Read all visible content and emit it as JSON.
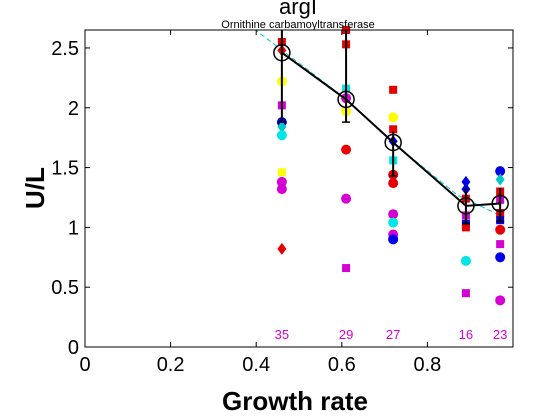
{
  "chart_data": {
    "type": "scatter",
    "title": "argI",
    "subtitle": "Ornithine carbamoyltransferase",
    "xlabel": "Growth rate",
    "ylabel": "U/L",
    "xlim": [
      0,
      1.0
    ],
    "ylim": [
      0,
      2.65
    ],
    "xticks": [
      {
        "value": 0,
        "label": "0"
      },
      {
        "value": 0.2,
        "label": "0.2"
      },
      {
        "value": 0.4,
        "label": "0.4"
      },
      {
        "value": 0.6,
        "label": "0.6"
      },
      {
        "value": 0.8,
        "label": "0.8"
      }
    ],
    "yticks": [
      {
        "value": 0,
        "label": "0"
      },
      {
        "value": 0.5,
        "label": "0.5"
      },
      {
        "value": 1,
        "label": "1"
      },
      {
        "value": 1.5,
        "label": "1.5"
      },
      {
        "value": 2,
        "label": "2"
      },
      {
        "value": 2.5,
        "label": "2.5"
      }
    ],
    "grid": false,
    "mean_series": {
      "color": "#000000",
      "points": [
        {
          "x": 0.46,
          "y": 2.46,
          "low": 1.88,
          "high": 2.65
        },
        {
          "x": 0.61,
          "y": 2.07,
          "low": 1.88,
          "high": 2.65
        },
        {
          "x": 0.72,
          "y": 1.71,
          "low": 1.43,
          "high": 1.8
        },
        {
          "x": 0.89,
          "y": 1.18,
          "low": 1.03,
          "high": 1.33
        },
        {
          "x": 0.97,
          "y": 1.2,
          "low": 1.05,
          "high": 1.33
        }
      ]
    },
    "fit_line": {
      "color": "#00c8c8",
      "points": [
        [
          0.38,
          2.7
        ],
        [
          0.6,
          2.1
        ],
        [
          0.75,
          1.62
        ],
        [
          0.87,
          1.27
        ],
        [
          0.97,
          1.1
        ]
      ]
    },
    "points": [
      {
        "x": 0.46,
        "y": 2.55,
        "shape": "square",
        "color": "#e60000"
      },
      {
        "x": 0.46,
        "y": 2.48,
        "shape": "diamond",
        "color": "#e60000"
      },
      {
        "x": 0.46,
        "y": 2.22,
        "shape": "circle",
        "color": "#ffff00"
      },
      {
        "x": 0.46,
        "y": 2.02,
        "shape": "square",
        "color": "#d400d4"
      },
      {
        "x": 0.46,
        "y": 1.88,
        "shape": "circle",
        "color": "#0000e6"
      },
      {
        "x": 0.46,
        "y": 1.84,
        "shape": "diamond",
        "color": "#00c8c8"
      },
      {
        "x": 0.46,
        "y": 1.77,
        "shape": "circle",
        "color": "#00e6e6"
      },
      {
        "x": 0.46,
        "y": 1.46,
        "shape": "square",
        "color": "#ffff00"
      },
      {
        "x": 0.46,
        "y": 1.38,
        "shape": "circle",
        "color": "#d400d4"
      },
      {
        "x": 0.46,
        "y": 1.32,
        "shape": "circle",
        "color": "#d400d4"
      },
      {
        "x": 0.46,
        "y": 0.82,
        "shape": "diamond",
        "color": "#e60000"
      },
      {
        "x": 0.61,
        "y": 2.65,
        "shape": "square",
        "color": "#e60000"
      },
      {
        "x": 0.61,
        "y": 2.53,
        "shape": "square",
        "color": "#e60000"
      },
      {
        "x": 0.61,
        "y": 2.16,
        "shape": "square",
        "color": "#00e6e6"
      },
      {
        "x": 0.61,
        "y": 2.08,
        "shape": "circle",
        "color": "#d400d4"
      },
      {
        "x": 0.61,
        "y": 1.97,
        "shape": "circle",
        "color": "#ffff00"
      },
      {
        "x": 0.61,
        "y": 1.65,
        "shape": "circle",
        "color": "#e60000"
      },
      {
        "x": 0.61,
        "y": 1.24,
        "shape": "circle",
        "color": "#d400d4"
      },
      {
        "x": 0.61,
        "y": 0.66,
        "shape": "square",
        "color": "#d400d4"
      },
      {
        "x": 0.72,
        "y": 2.15,
        "shape": "square",
        "color": "#e60000"
      },
      {
        "x": 0.72,
        "y": 1.92,
        "shape": "circle",
        "color": "#ffff00"
      },
      {
        "x": 0.72,
        "y": 1.82,
        "shape": "square",
        "color": "#e60000"
      },
      {
        "x": 0.72,
        "y": 1.72,
        "shape": "diamond",
        "color": "#0000e6"
      },
      {
        "x": 0.72,
        "y": 1.56,
        "shape": "square",
        "color": "#00e6e6"
      },
      {
        "x": 0.72,
        "y": 1.44,
        "shape": "circle",
        "color": "#e60000"
      },
      {
        "x": 0.72,
        "y": 1.37,
        "shape": "circle",
        "color": "#e60000"
      },
      {
        "x": 0.72,
        "y": 1.11,
        "shape": "circle",
        "color": "#d400d4"
      },
      {
        "x": 0.72,
        "y": 1.04,
        "shape": "circle",
        "color": "#00e6e6"
      },
      {
        "x": 0.72,
        "y": 0.94,
        "shape": "circle",
        "color": "#d400d4"
      },
      {
        "x": 0.72,
        "y": 0.9,
        "shape": "circle",
        "color": "#0000e6"
      },
      {
        "x": 0.89,
        "y": 1.38,
        "shape": "diamond",
        "color": "#0000e6"
      },
      {
        "x": 0.89,
        "y": 1.32,
        "shape": "diamond",
        "color": "#0000e6"
      },
      {
        "x": 0.89,
        "y": 1.24,
        "shape": "square",
        "color": "#e60000"
      },
      {
        "x": 0.89,
        "y": 1.1,
        "shape": "square",
        "color": "#d400d4"
      },
      {
        "x": 0.89,
        "y": 1.03,
        "shape": "square",
        "color": "#0000e6"
      },
      {
        "x": 0.89,
        "y": 1.0,
        "shape": "square",
        "color": "#e60000"
      },
      {
        "x": 0.89,
        "y": 0.72,
        "shape": "circle",
        "color": "#00e6e6"
      },
      {
        "x": 0.89,
        "y": 0.45,
        "shape": "square",
        "color": "#d400d4"
      },
      {
        "x": 0.97,
        "y": 1.47,
        "shape": "circle",
        "color": "#0000e6"
      },
      {
        "x": 0.97,
        "y": 1.4,
        "shape": "diamond",
        "color": "#00c8c8"
      },
      {
        "x": 0.97,
        "y": 1.3,
        "shape": "square",
        "color": "#e60000"
      },
      {
        "x": 0.97,
        "y": 1.23,
        "shape": "square",
        "color": "#d400d4"
      },
      {
        "x": 0.97,
        "y": 1.12,
        "shape": "square",
        "color": "#e60000"
      },
      {
        "x": 0.97,
        "y": 1.06,
        "shape": "square",
        "color": "#0000e6"
      },
      {
        "x": 0.97,
        "y": 0.98,
        "shape": "circle",
        "color": "#e60000"
      },
      {
        "x": 0.97,
        "y": 0.86,
        "shape": "square",
        "color": "#d400d4"
      },
      {
        "x": 0.97,
        "y": 0.75,
        "shape": "circle",
        "color": "#0000e6"
      },
      {
        "x": 0.97,
        "y": 0.39,
        "shape": "circle",
        "color": "#d400d4"
      }
    ],
    "count_labels": [
      {
        "x": 0.46,
        "text": "35"
      },
      {
        "x": 0.61,
        "text": "29"
      },
      {
        "x": 0.72,
        "text": "27"
      },
      {
        "x": 0.89,
        "text": "16"
      },
      {
        "x": 0.97,
        "text": "23"
      }
    ],
    "count_label_color": "#d400d4"
  }
}
